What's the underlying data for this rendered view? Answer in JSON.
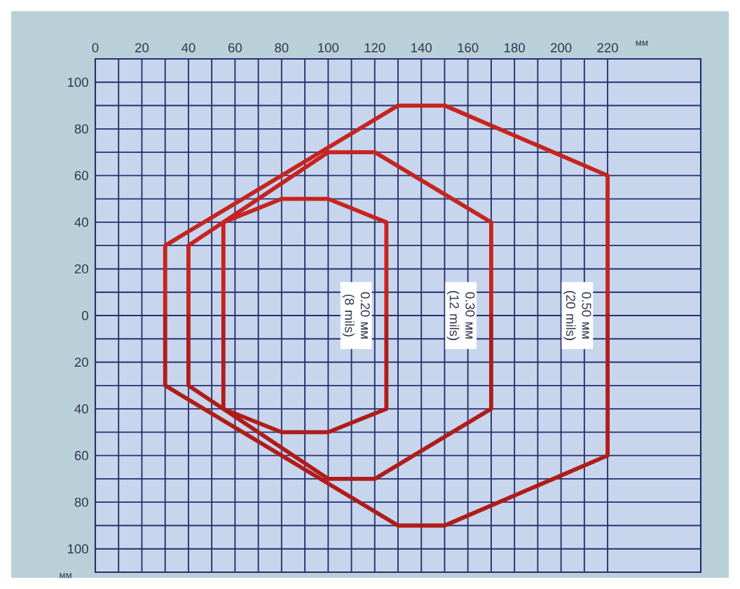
{
  "chart_data": {
    "type": "line",
    "xlabel": "мм",
    "ylabel": "мм",
    "xlim": [
      0,
      260
    ],
    "ylim": [
      -110,
      110
    ],
    "xticks": [
      0,
      20,
      40,
      60,
      80,
      100,
      120,
      140,
      160,
      180,
      200,
      220
    ],
    "yticks": [
      100,
      80,
      60,
      40,
      20,
      0,
      {
        "value": -20,
        "label": "20"
      },
      {
        "value": -40,
        "label": "40"
      },
      {
        "value": -60,
        "label": "60"
      },
      {
        "value": -80,
        "label": "80"
      },
      {
        "value": -100,
        "label": "100"
      }
    ],
    "grid": true,
    "line_style": "solid",
    "series": [
      {
        "name": "0.50 мм (20 mils)",
        "color": "#c62420",
        "x": [
          30,
          30,
          130,
          150,
          220,
          220
        ],
        "values": [
          0,
          30,
          90,
          90,
          60,
          0
        ]
      },
      {
        "color": "#b01c1a",
        "x": [
          30,
          30,
          130,
          150,
          220,
          220
        ],
        "values": [
          0,
          -30,
          -90,
          -90,
          -60,
          0
        ]
      },
      {
        "name": "0.30 мм (12 mils)",
        "color": "#c62420",
        "x": [
          40,
          40,
          100,
          120,
          170,
          170
        ],
        "values": [
          0,
          30,
          70,
          70,
          40,
          0
        ]
      },
      {
        "color": "#b01c1a",
        "x": [
          40,
          40,
          100,
          120,
          170,
          170
        ],
        "values": [
          0,
          -30,
          -70,
          -70,
          -40,
          0
        ]
      },
      {
        "name": "0.20 мм (8 mils)",
        "color": "#c62420",
        "x": [
          55,
          55,
          80,
          100,
          125,
          125
        ],
        "values": [
          0,
          40,
          50,
          50,
          40,
          0
        ]
      },
      {
        "color": "#b01c1a",
        "x": [
          55,
          55,
          80,
          100,
          125,
          125
        ],
        "values": [
          0,
          -40,
          -50,
          -50,
          -40,
          0
        ]
      }
    ]
  }
}
